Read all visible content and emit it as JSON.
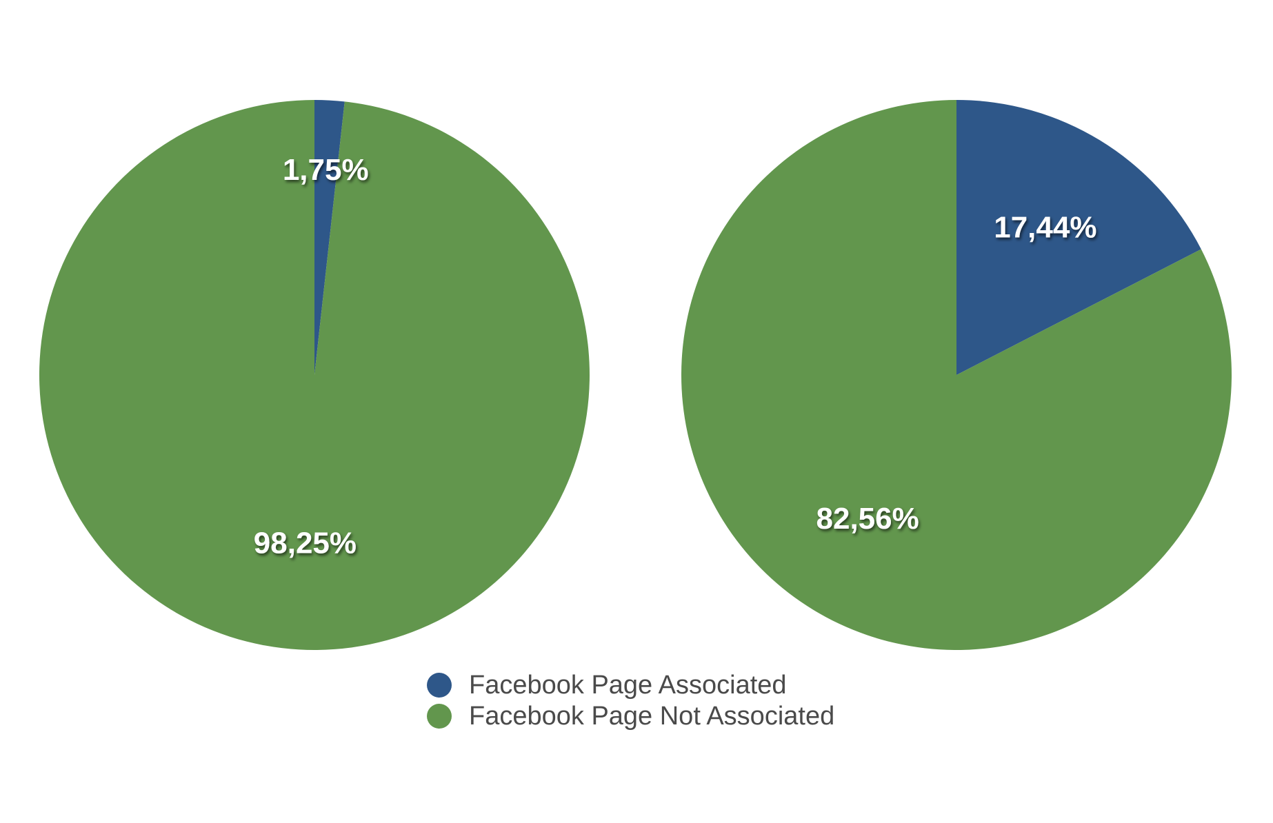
{
  "chart_data": [
    {
      "type": "pie",
      "start_angle_deg": 0,
      "direction": "clockwise",
      "slices": [
        {
          "name": "Facebook Page Associated",
          "value": 1.75,
          "label": "1,75%",
          "color": "#2e5789"
        },
        {
          "name": "Facebook Page Not Associated",
          "value": 98.25,
          "label": "98,25%",
          "color": "#62964d"
        }
      ]
    },
    {
      "type": "pie",
      "start_angle_deg": 0,
      "direction": "clockwise",
      "slices": [
        {
          "name": "Facebook Page Associated",
          "value": 17.44,
          "label": "17,44%",
          "color": "#2e5789"
        },
        {
          "name": "Facebook Page Not Associated",
          "value": 82.56,
          "label": "82,56%",
          "color": "#62964d"
        }
      ]
    }
  ],
  "legend": {
    "placement": "bottom-center",
    "items": [
      {
        "label": "Facebook Page Associated",
        "color": "#2e5789"
      },
      {
        "label": "Facebook Page Not Associated",
        "color": "#62964d"
      }
    ]
  }
}
